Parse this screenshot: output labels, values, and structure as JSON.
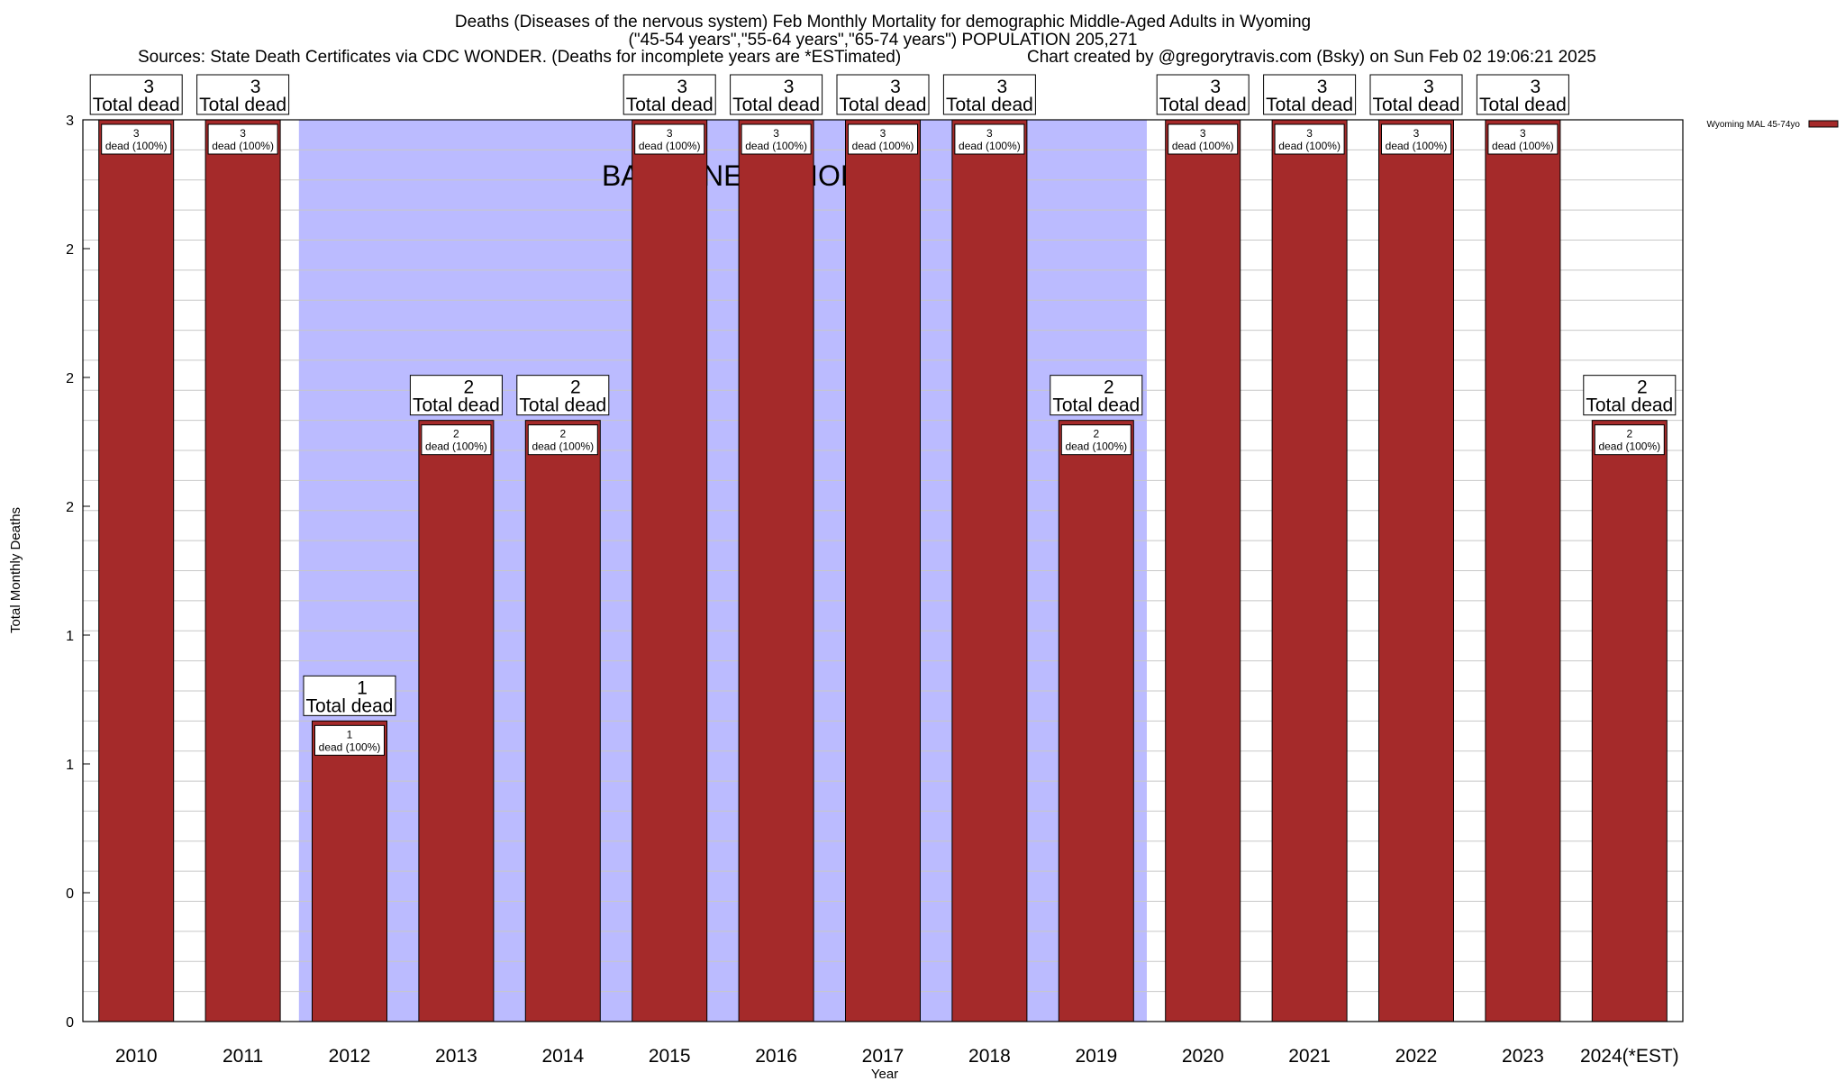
{
  "header": {
    "title": "Deaths (Diseases of the nervous system) Feb Monthly Mortality for demographic Middle-Aged Adults in Wyoming",
    "subtitle": "(\"45-54 years\",\"55-64 years\",\"65-74 years\") POPULATION 205,271",
    "sources": "Sources: State Death Certificates via CDC WONDER. (Deaths for incomplete years are *ESTimated)",
    "credit": "Chart created by @gregorytravis.com (Bsky) on Sun Feb 02 19:06:21 2025"
  },
  "chart_data": {
    "type": "bar",
    "title": "Deaths (Diseases of the nervous system) Feb Monthly Mortality for demographic Middle-Aged Adults in Wyoming",
    "xlabel": "Year",
    "ylabel": "Total Monthly Deaths",
    "categories": [
      "2010",
      "2011",
      "2012",
      "2013",
      "2014",
      "2015",
      "2016",
      "2017",
      "2018",
      "2019",
      "2020",
      "2021",
      "2022",
      "2023",
      "2024(*EST)"
    ],
    "series": [
      {
        "name": "Wyoming MAL 45-74yo",
        "values": [
          3,
          3,
          1,
          2,
          2,
          3,
          3,
          3,
          3,
          2,
          3,
          3,
          3,
          3,
          2
        ],
        "color": "#a52a2a"
      }
    ],
    "ylim": [
      0,
      3
    ],
    "y_tick_labels": [
      "0",
      "0",
      "1",
      "1",
      "2",
      "2",
      "2",
      "3"
    ],
    "total_label_text": "Total dead",
    "inner_label_text": "dead (100%)",
    "baseline_period": {
      "label": "BASELINE PERIOD",
      "from": "2012",
      "to": "2019",
      "color": "#bbbbff"
    },
    "grid": true,
    "legend_position": "top-right"
  }
}
